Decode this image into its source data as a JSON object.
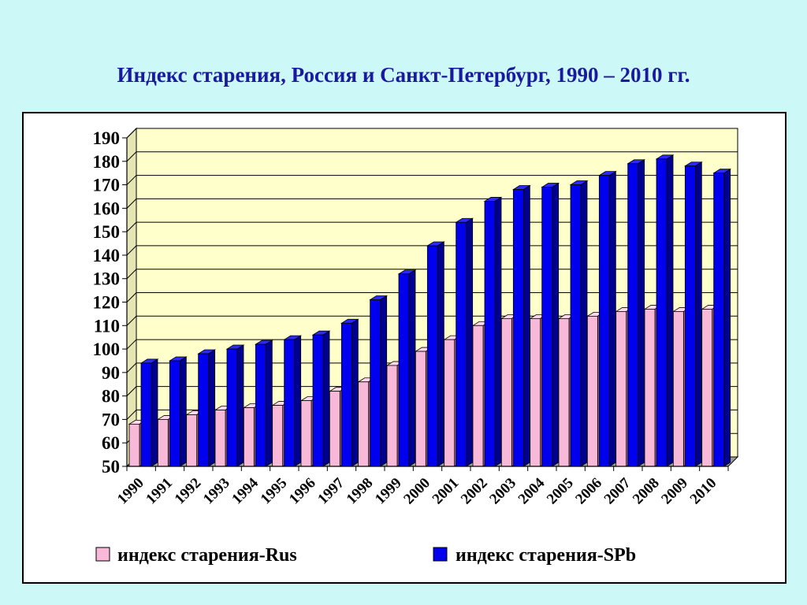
{
  "title": "Индекс старения, Россия и Санкт-Петербург, 1990 – 2010 гг.",
  "colors": {
    "background": "#ccf8f8",
    "plot_area": "#ffffcc",
    "rus_front": "#f8b8d8",
    "rus_top": "#ffd8ec",
    "rus_side": "#b07090",
    "spb_front": "#0000ee",
    "spb_top": "#2a2aff",
    "spb_side": "#000090"
  },
  "chart_data": {
    "type": "bar",
    "title": "Индекс старения, Россия и Санкт-Петербург, 1990 – 2010 гг.",
    "xlabel": "",
    "ylabel": "",
    "ylim": [
      50,
      190
    ],
    "yticks": [
      50,
      60,
      70,
      80,
      90,
      100,
      110,
      120,
      130,
      140,
      150,
      160,
      170,
      180,
      190
    ],
    "grid": true,
    "legend_position": "bottom",
    "categories": [
      "1990",
      "1991",
      "1992",
      "1993",
      "1994",
      "1995",
      "1996",
      "1997",
      "1998",
      "1999",
      "2000",
      "2001",
      "2002",
      "2003",
      "2004",
      "2005",
      "2006",
      "2007",
      "2008",
      "2009",
      "2010"
    ],
    "series": [
      {
        "name": "индекс старения-Rus",
        "values": [
          68,
          70,
          72,
          74,
          75,
          76,
          78,
          82,
          86,
          93,
          99,
          104,
          110,
          113,
          113,
          113,
          114,
          116,
          117,
          116,
          117
        ]
      },
      {
        "name": "индекс старения-SPb",
        "values": [
          94,
          95,
          98,
          100,
          102,
          104,
          106,
          111,
          121,
          132,
          144,
          154,
          163,
          168,
          169,
          170,
          174,
          179,
          181,
          178,
          175
        ]
      }
    ]
  }
}
